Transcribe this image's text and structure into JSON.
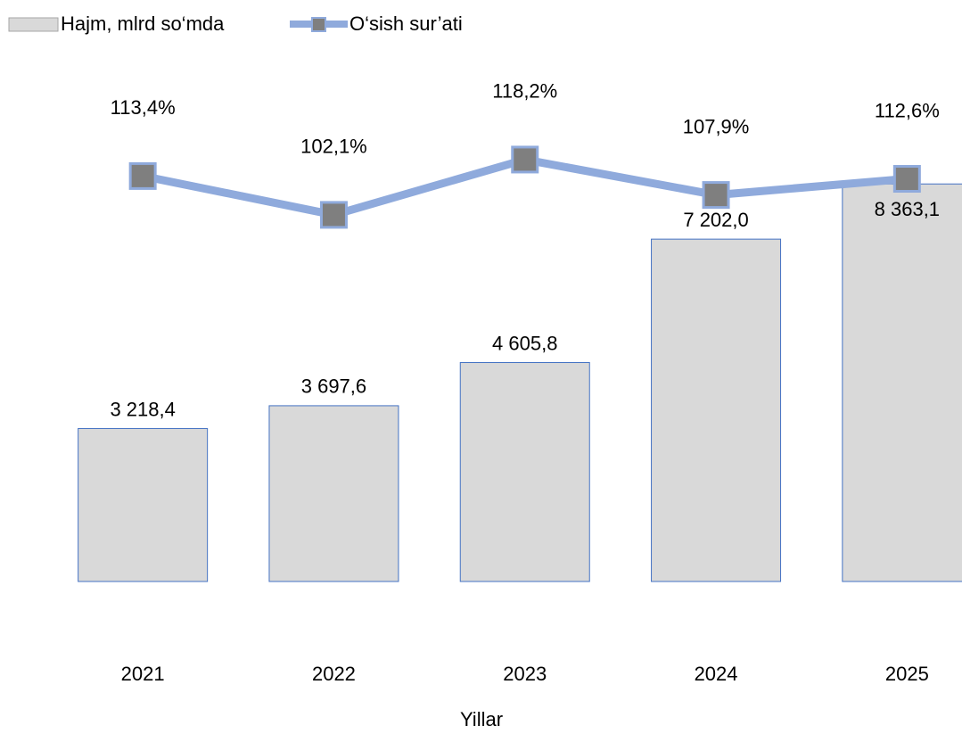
{
  "chart_data": {
    "type": "bar_line",
    "categories": [
      "2021",
      "2022",
      "2023",
      "2024",
      "2025"
    ],
    "x_label": "Yillar",
    "series": [
      {
        "name": "Hajm, mlrd so‘mda",
        "type": "bar",
        "color": "#d9d9d9",
        "edge_color": "#4472c4",
        "values": [
          3218.4,
          3697.6,
          4605.8,
          7202.0,
          8363.1
        ],
        "value_labels": [
          "3 218,4",
          "3 697,6",
          "4 605,8",
          "7 202,0",
          "8 363,1"
        ]
      },
      {
        "name": "O‘sish sur’ati",
        "type": "line",
        "axis": "y2",
        "color": "#8faadc",
        "marker_color": "#7f7f7f",
        "values": [
          113.4,
          102.1,
          118.2,
          107.9,
          112.6
        ],
        "value_labels": [
          "113,4%",
          "102,1%",
          "118,2%",
          "107,9%",
          "112,6%"
        ]
      }
    ],
    "ylim": [
      0,
      10000
    ],
    "y2lim": [
      0,
      140
    ],
    "legend": "top-left",
    "grid": false
  }
}
